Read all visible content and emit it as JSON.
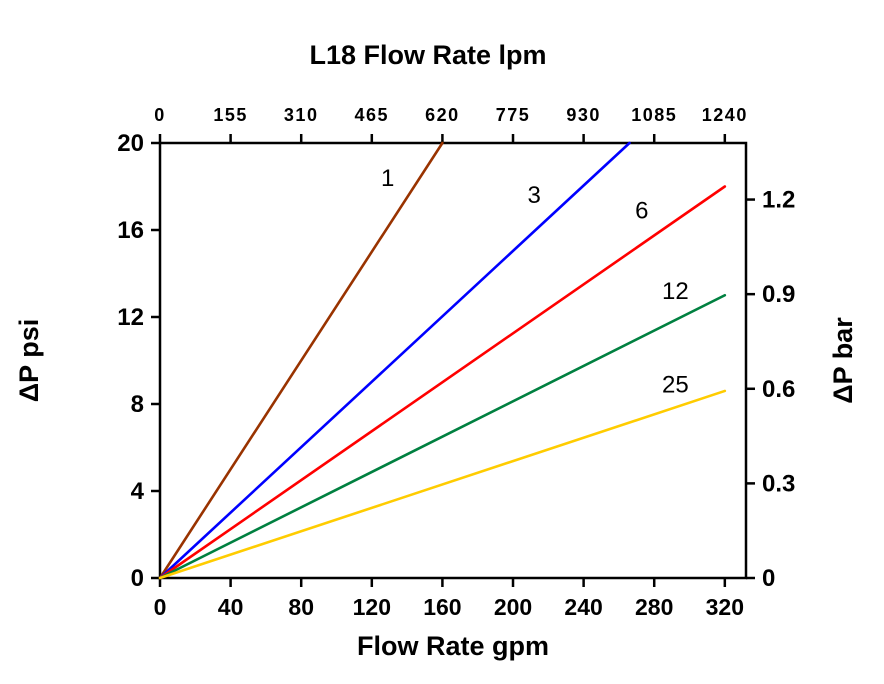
{
  "chart_data": {
    "type": "line",
    "title": "L18 Flow Rate lpm",
    "x_axis": {
      "label": "Flow Rate gpm",
      "min": 0,
      "max": 332,
      "ticks": [
        0,
        40,
        80,
        120,
        160,
        200,
        240,
        280,
        320
      ]
    },
    "top_axis": {
      "label": "L18 Flow Rate lpm",
      "tick_labels": [
        "0",
        "155",
        "310",
        "465",
        "620",
        "775",
        "930",
        "1085",
        "1240"
      ]
    },
    "y_axis": {
      "label": "ΔP psi",
      "min": 0,
      "max": 20,
      "ticks": [
        0,
        4,
        8,
        12,
        16,
        20
      ]
    },
    "right_axis": {
      "label": "ΔP bar",
      "ticks": [
        0,
        0.3,
        0.6,
        0.9,
        1.2
      ],
      "psi_per_bar": 14.5
    },
    "series": [
      {
        "name": "1",
        "color": "#993300",
        "points": [
          [
            0,
            0
          ],
          [
            160,
            20
          ]
        ],
        "label_pos": [
          129,
          18.4
        ]
      },
      {
        "name": "3",
        "color": "#0000FF",
        "points": [
          [
            0,
            0
          ],
          [
            266,
            20
          ]
        ],
        "label_pos": [
          212,
          17.6
        ]
      },
      {
        "name": "6",
        "color": "#FF0000",
        "points": [
          [
            0,
            0
          ],
          [
            320,
            18
          ]
        ],
        "label_pos": [
          273,
          16.9
        ]
      },
      {
        "name": "12",
        "color": "#008040",
        "points": [
          [
            0,
            0
          ],
          [
            320,
            13
          ]
        ],
        "label_pos": [
          292,
          13.2
        ]
      },
      {
        "name": "25",
        "color": "#FFCC00",
        "points": [
          [
            0,
            0
          ],
          [
            320,
            8.6
          ]
        ],
        "label_pos": [
          292,
          8.9
        ]
      }
    ],
    "style": {
      "axis_color": "#000000",
      "background": "#ffffff"
    }
  }
}
